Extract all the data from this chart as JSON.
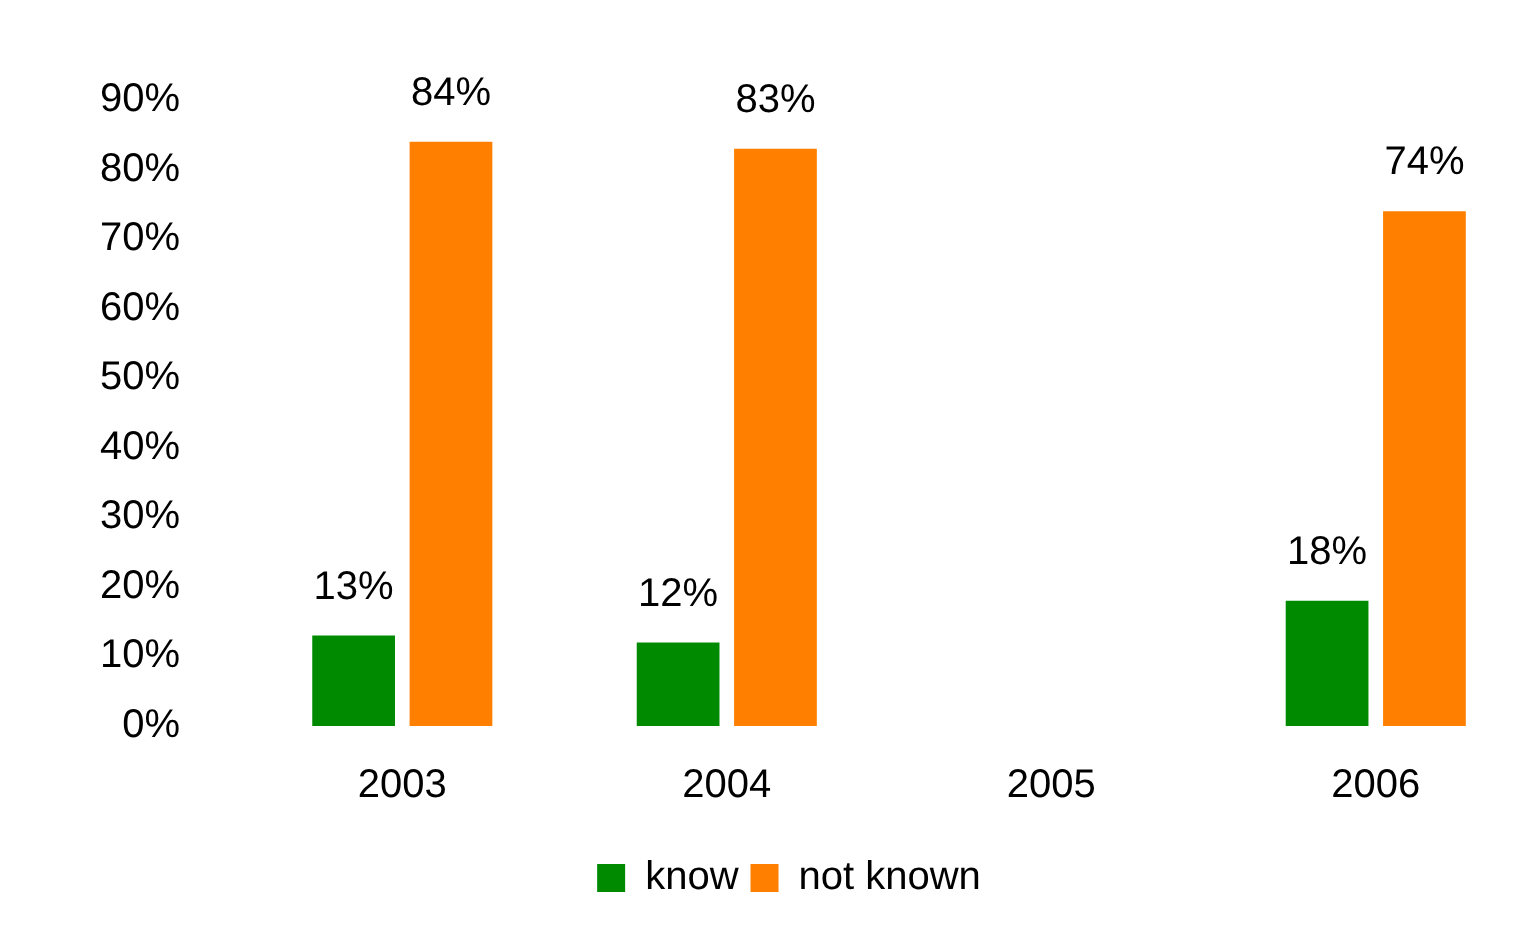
{
  "chart_data": {
    "type": "bar",
    "categories": [
      "2003",
      "2004",
      "2005",
      "2006"
    ],
    "series": [
      {
        "name": "know",
        "color": "#008a00",
        "values": [
          13,
          12,
          null,
          18
        ],
        "value_labels": [
          "13%",
          "12%",
          null,
          "18%"
        ]
      },
      {
        "name": "not known",
        "color": "#ff8000",
        "values": [
          84,
          83,
          null,
          74
        ],
        "value_labels": [
          "84%",
          "83%",
          null,
          "74%"
        ]
      }
    ],
    "ylim": [
      0,
      90
    ],
    "yticks": [
      {
        "value": 0,
        "label": "0%"
      },
      {
        "value": 10,
        "label": "10%"
      },
      {
        "value": 20,
        "label": "20%"
      },
      {
        "value": 30,
        "label": "30%"
      },
      {
        "value": 40,
        "label": "40%"
      },
      {
        "value": 50,
        "label": "50%"
      },
      {
        "value": 60,
        "label": "60%"
      },
      {
        "value": 70,
        "label": "70%"
      },
      {
        "value": 80,
        "label": "80%"
      },
      {
        "value": 90,
        "label": "90%"
      }
    ],
    "grid": false,
    "legend": "bottom"
  }
}
